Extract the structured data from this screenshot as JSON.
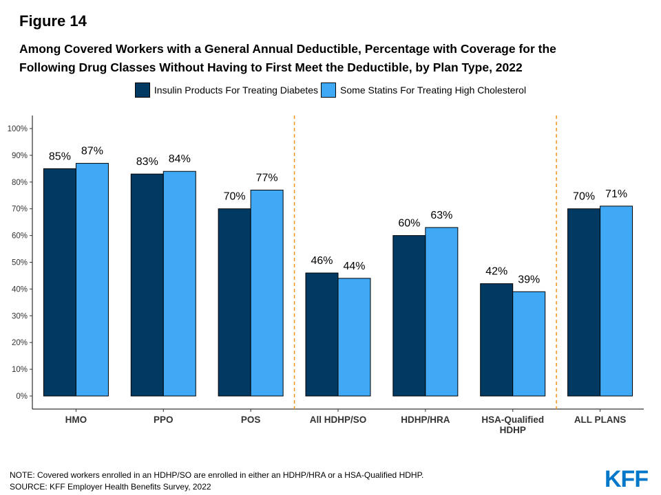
{
  "figure_label": "Figure 14",
  "title_line1": "Among Covered Workers with a General Annual Deductible, Percentage with Coverage for the",
  "title_line2": "Following Drug Classes Without Having to First Meet the Deductible, by Plan Type, 2022",
  "colors": {
    "insulin": "#003a63",
    "statins": "#3fa9f5",
    "divider": "#f7941d"
  },
  "chart_data": {
    "type": "bar",
    "categories": [
      "HMO",
      "PPO",
      "POS",
      "All HDHP/SO",
      "HDHP/HRA",
      "HSA-Qualified\nHDHP",
      "ALL PLANS"
    ],
    "series": [
      {
        "name": "Insulin Products For Treating Diabetes",
        "values": [
          85,
          83,
          70,
          46,
          60,
          42,
          70
        ]
      },
      {
        "name": "Some Statins For Treating High Cholesterol",
        "values": [
          87,
          84,
          77,
          44,
          63,
          39,
          71
        ]
      }
    ],
    "value_labels": [
      [
        "85%",
        "83%",
        "70%",
        "46%",
        "60%",
        "42%",
        "70%"
      ],
      [
        "87%",
        "84%",
        "77%",
        "44%",
        "63%",
        "39%",
        "71%"
      ]
    ],
    "yticks": [
      "0%",
      "10%",
      "20%",
      "30%",
      "40%",
      "50%",
      "60%",
      "70%",
      "80%",
      "90%",
      "100%"
    ],
    "ylim": [
      0,
      100
    ],
    "dividers_after_category": [
      2,
      5
    ],
    "legend_position": "top",
    "grid": false
  },
  "note": "NOTE: Covered workers enrolled in an HDHP/SO are enrolled in either an HDHP/HRA or a HSA-Qualified HDHP.",
  "source": "SOURCE: KFF Employer Health Benefits Survey, 2022",
  "logo_text": "KFF"
}
